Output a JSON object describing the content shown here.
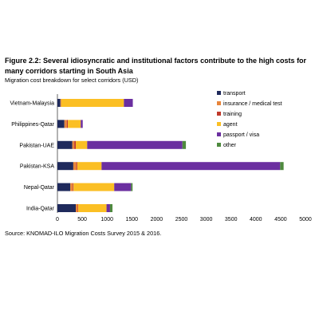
{
  "figure": {
    "title": "Figure 2.2: Several idiosyncratic and institutional factors contribute to the high costs for many corridors starting in South Asia",
    "subtitle": "Migration cost breakdown for select corridors (USD)",
    "source": "Source: KNOMAD-ILO Migration Costs Survey 2015 & 2016."
  },
  "chart_data": {
    "type": "bar",
    "orientation": "horizontal",
    "stacked": true,
    "categories": [
      "Vietnam-Malaysia",
      "Philippines-Qatar",
      "Pakistan-UAE",
      "Pakistan-KSA",
      "Nepal-Qatar",
      "India-Qatar"
    ],
    "series": [
      {
        "name": "transport",
        "color": "#1f2a5c",
        "values": [
          60,
          140,
          300,
          320,
          260,
          370
        ]
      },
      {
        "name": "insurance / medical test",
        "color": "#e8853a",
        "values": [
          10,
          50,
          40,
          60,
          50,
          40
        ]
      },
      {
        "name": "training",
        "color": "#c0392b",
        "values": [
          5,
          20,
          30,
          20,
          15,
          10
        ]
      },
      {
        "name": "agent",
        "color": "#fbbf24",
        "values": [
          1265,
          260,
          230,
          490,
          820,
          570
        ]
      },
      {
        "name": "passport / visa",
        "color": "#6b2fa0",
        "values": [
          180,
          40,
          1920,
          3600,
          340,
          70
        ]
      },
      {
        "name": "other",
        "color": "#4e8a3e",
        "values": [
          0,
          0,
          70,
          70,
          30,
          50
        ]
      }
    ],
    "xlim": [
      0,
      5000
    ],
    "xticks": [
      0,
      500,
      1000,
      1500,
      2000,
      2500,
      3000,
      3500,
      4000,
      4500,
      5000
    ],
    "grid": false,
    "legend_position": "right"
  }
}
